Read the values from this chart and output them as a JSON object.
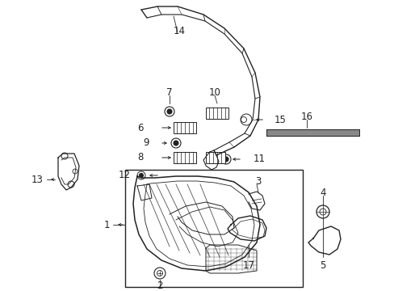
{
  "background_color": "#ffffff",
  "line_color": "#222222",
  "font_size": 8.5
}
